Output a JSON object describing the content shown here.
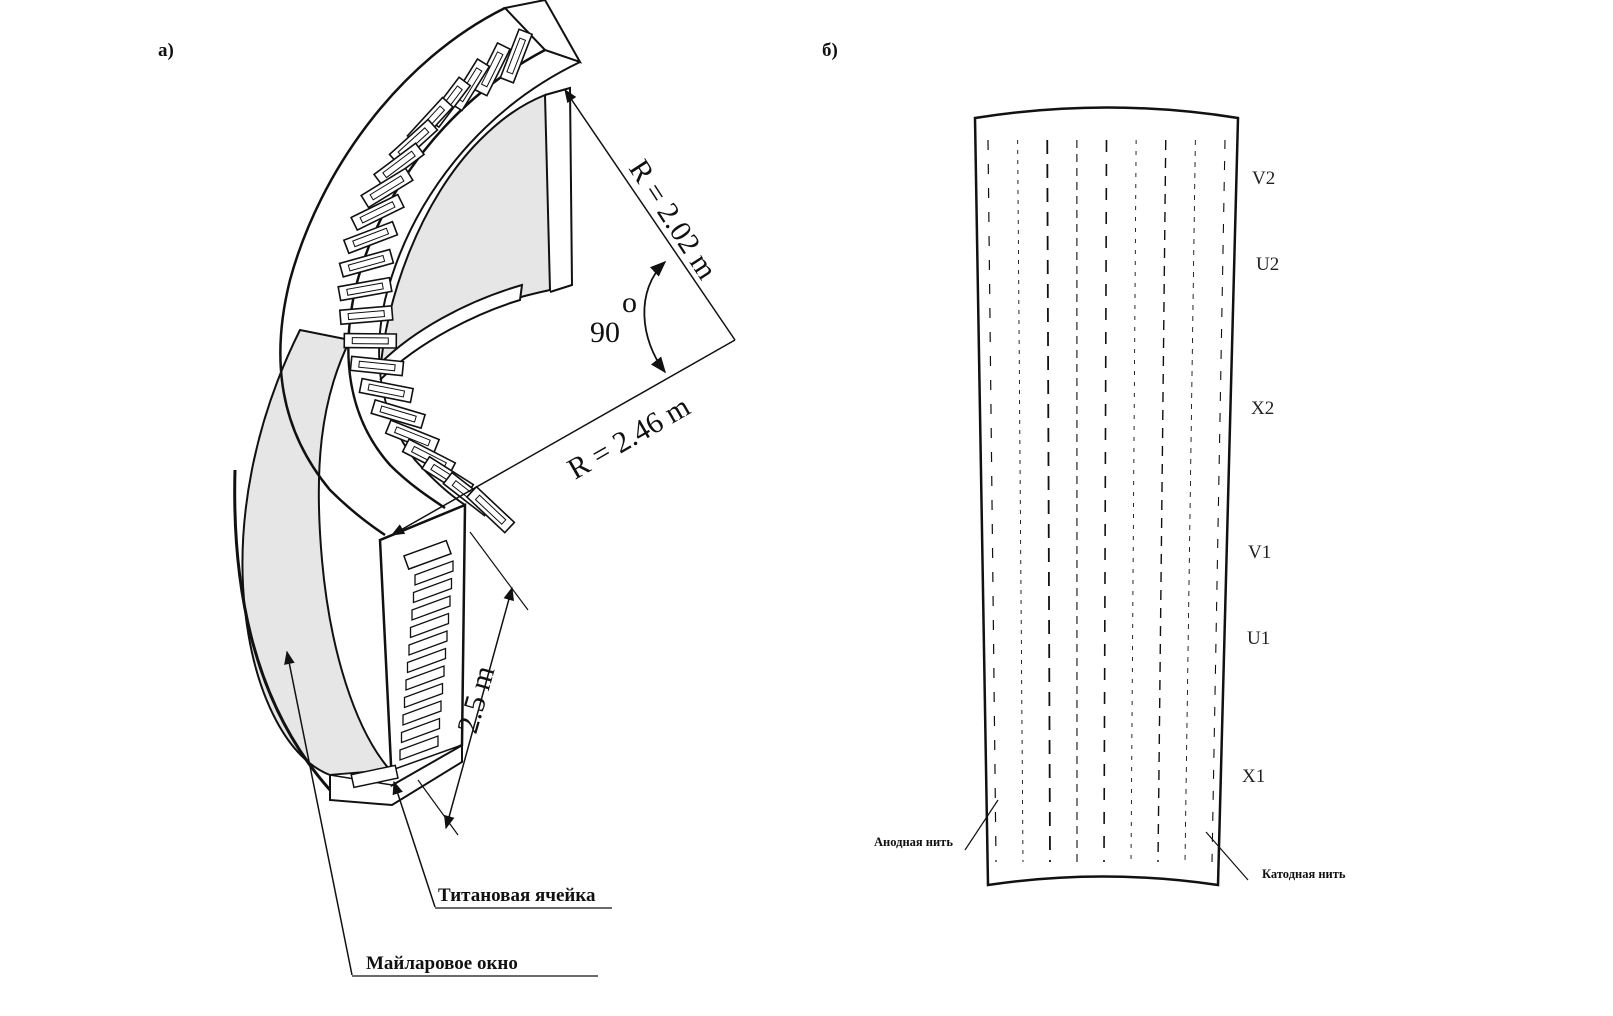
{
  "panel_a": {
    "label": "а)",
    "radius_outer": "R = 2.46 m",
    "radius_inner": "R = 2.02 m",
    "angle_value": "90",
    "angle_unit": "o",
    "height": "2.5 m",
    "callout_titanium": "Титановая ячейка",
    "callout_mylar": "Майларовое окно"
  },
  "panel_b": {
    "label": "б)",
    "layers": [
      "V2",
      "U2",
      "X2",
      "V1",
      "U1",
      "X1"
    ],
    "anode_wire": "Анодная нить",
    "cathode_wire": "Катодная нить"
  }
}
